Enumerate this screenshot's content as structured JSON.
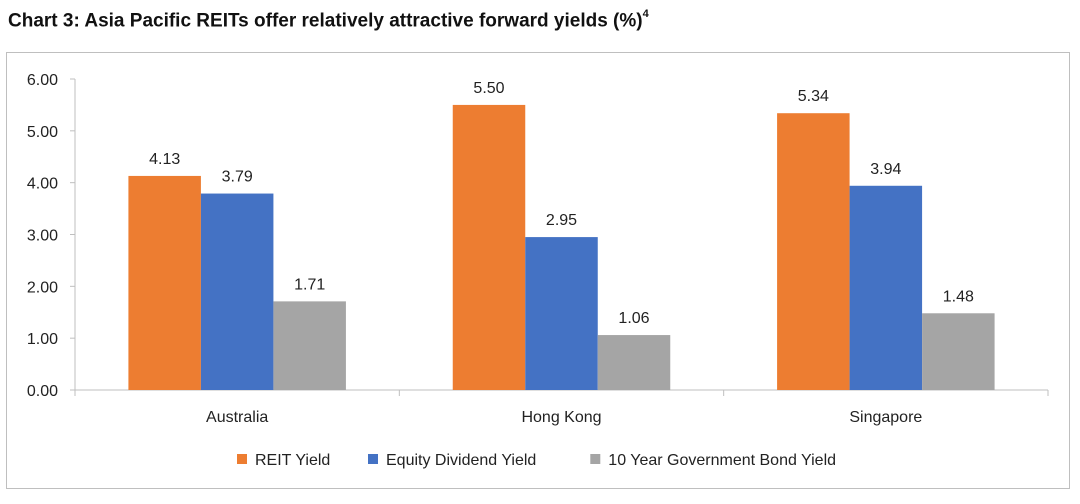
{
  "title": {
    "main": "Chart 3: Asia Pacific REITs offer relatively attractive forward yields (%)",
    "superscript": "4"
  },
  "chart_data": {
    "type": "bar",
    "categories": [
      "Australia",
      "Hong Kong",
      "Singapore"
    ],
    "series": [
      {
        "name": "REIT Yield",
        "values": [
          4.13,
          5.5,
          5.34
        ],
        "color": "#ED7D31"
      },
      {
        "name": "Equity Dividend Yield",
        "values": [
          3.79,
          2.95,
          3.94
        ],
        "color": "#4472C4"
      },
      {
        "name": "10 Year Government Bond Yield",
        "values": [
          1.71,
          1.06,
          1.48
        ],
        "color": "#A5A5A5"
      }
    ],
    "data_labels": [
      [
        "4.13",
        "5.50",
        "5.34"
      ],
      [
        "3.79",
        "2.95",
        "3.94"
      ],
      [
        "1.71",
        "1.06",
        "1.48"
      ]
    ],
    "yticks": [
      "0.00",
      "1.00",
      "2.00",
      "3.00",
      "4.00",
      "5.00",
      "6.00"
    ],
    "ylim": [
      0,
      6
    ],
    "xlabel": "",
    "ylabel": "",
    "grid": false,
    "legend_position": "bottom"
  }
}
